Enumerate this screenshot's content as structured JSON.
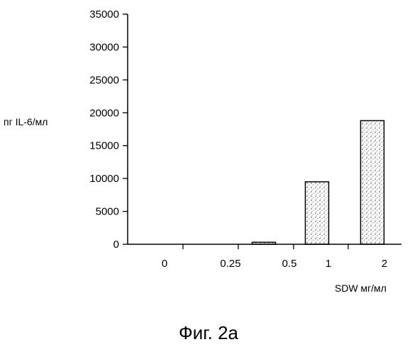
{
  "chart_data": {
    "type": "bar",
    "categories": [
      "0",
      "0.25",
      "0.5",
      "1",
      "2"
    ],
    "values": [
      0,
      0,
      300,
      9500,
      18800
    ],
    "ylabel": "пг IL-6/мл",
    "xlabel": "SDW мг/мл",
    "ylim": [
      0,
      35000
    ],
    "yticks": [
      0,
      5000,
      10000,
      15000,
      20000,
      25000,
      30000,
      35000
    ],
    "bar_fill": "#d8d8d8",
    "grid": false
  },
  "caption": "Фиг. 2а"
}
